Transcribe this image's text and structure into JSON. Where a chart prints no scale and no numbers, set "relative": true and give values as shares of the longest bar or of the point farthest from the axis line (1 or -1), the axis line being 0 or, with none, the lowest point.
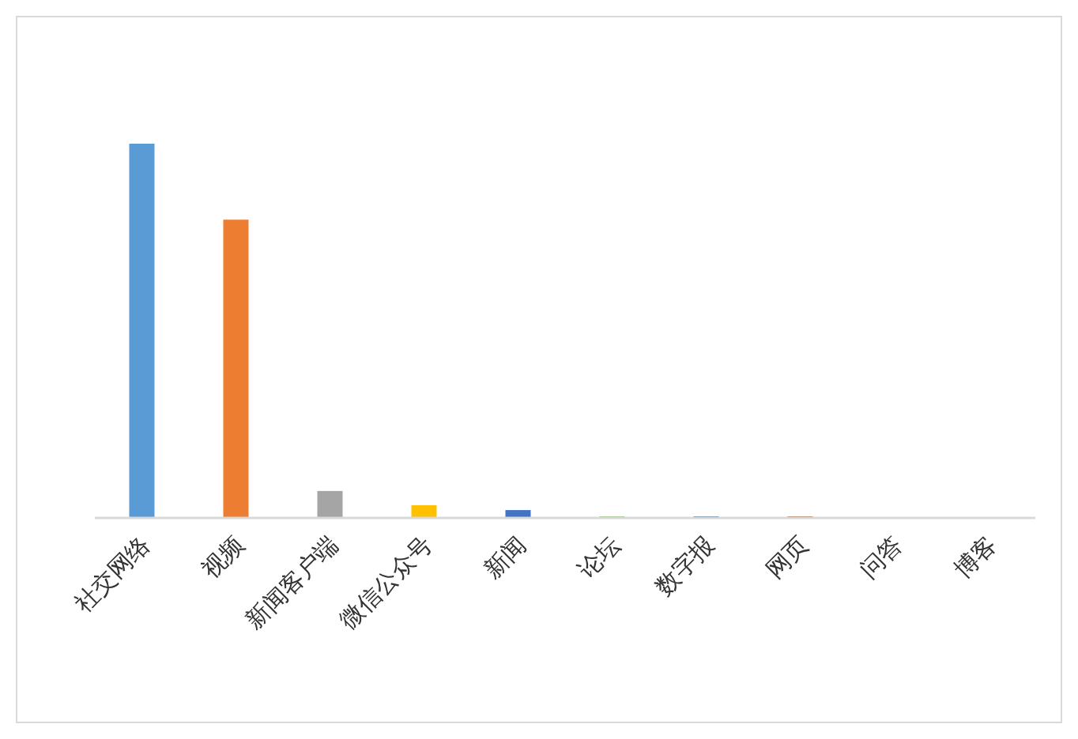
{
  "chart_data": {
    "type": "bar",
    "relative": true,
    "categories": [
      "社交网络",
      "视频",
      "新闻客户端",
      "微信公众号",
      "新闻",
      "论坛",
      "数字报",
      "网页",
      "问答",
      "博客"
    ],
    "values": [
      1,
      0.797,
      0.072,
      0.034,
      0.021,
      0.004,
      0.004,
      0.004,
      0,
      0
    ],
    "colors": [
      "#5b9bd5",
      "#ed7d31",
      "#a5a5a5",
      "#ffc000",
      "#4472c4",
      "#70ad47",
      "#255e91",
      "#9e480e",
      "#636363",
      "#997300"
    ]
  }
}
